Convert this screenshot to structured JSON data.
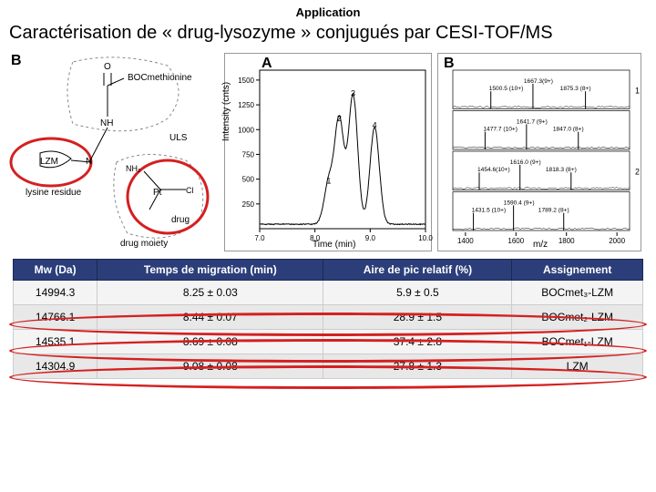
{
  "header": {
    "app_label": "Application",
    "title": "Caractérisation de « drug-lysozyme » conjugués par CESI-TOF/MS"
  },
  "panelA": {
    "letter": "B",
    "labels": {
      "boc": "BOCmethionine",
      "nh": "NH",
      "uls": "ULS",
      "lzm": "LZM",
      "n": "N",
      "lysine": "lysine residue",
      "nh2": "NH₂",
      "pt": "Pt",
      "cl": "Cl",
      "drug": "drug",
      "moiety": "drug moiety"
    },
    "ellipse_color": "#d42020",
    "dash_color": "#888888",
    "line_color": "#222222"
  },
  "panelB": {
    "letter": "A",
    "ylabel": "Intensity (cnts)",
    "xlabel": "Time (min)",
    "xticks": [
      "7.0",
      "8.0",
      "9.0",
      "10.0"
    ],
    "yticks": [
      "250",
      "500",
      "750",
      "1000",
      "1250",
      "1500"
    ],
    "xlim": [
      7.0,
      10.0
    ],
    "ylim": [
      0,
      1600
    ],
    "peaks_x": [
      8.25,
      8.44,
      8.69,
      9.08
    ],
    "peaks_y": [
      420,
      1050,
      1300,
      980
    ],
    "peak_labels": [
      "1",
      "2",
      "3",
      "4"
    ],
    "line_color": "#000000",
    "grid_color": "#cccccc",
    "background_color": "#ffffff"
  },
  "panelC": {
    "letter": "B",
    "xlabel": "m/z",
    "xticks": [
      "1400",
      "1600",
      "1800",
      "2000"
    ],
    "xlim": [
      1350,
      2050
    ],
    "rows": [
      {
        "label_idx": "1",
        "peaks": [
          {
            "mz": 1500.5,
            "ann": "1500.5 (10+)"
          },
          {
            "mz": 1667.3,
            "ann": "1667.3(9+)"
          },
          {
            "mz": 1875.3,
            "ann": "1875.3 (8+)"
          }
        ]
      },
      {
        "label_idx": "",
        "peaks": [
          {
            "mz": 1477.7,
            "ann": "1477.7 (10+)"
          },
          {
            "mz": 1641.7,
            "ann": "1641.7 (9+)"
          },
          {
            "mz": 1847.0,
            "ann": "1847.0 (8+)"
          }
        ]
      },
      {
        "label_idx": "2",
        "peaks": [
          {
            "mz": 1454.6,
            "ann": "1454.6(10+)"
          },
          {
            "mz": 1616.0,
            "ann": "1616.0 (9+)"
          },
          {
            "mz": 1818.3,
            "ann": "1818.3 (8+)"
          }
        ]
      },
      {
        "label_idx": "",
        "peaks": [
          {
            "mz": 1431.5,
            "ann": "1431.5 (10+)"
          },
          {
            "mz": 1590.4,
            "ann": "1590.4 (9+)"
          },
          {
            "mz": 1789.2,
            "ann": "1789.2 (8+)"
          }
        ]
      }
    ],
    "line_color": "#000000"
  },
  "table": {
    "columns": [
      "Mw (Da)",
      "Temps de migration (min)",
      "Aire de pic relatif (%)",
      "Assignement"
    ],
    "rows": [
      [
        "14994.3",
        "8.25 ± 0.03",
        "5.9 ± 0.5",
        "BOCmet₃-LZM"
      ],
      [
        "14766.1",
        "8.44 ± 0.07",
        "28.9 ± 1.5",
        "BOCmet₂-LZM"
      ],
      [
        "14535.1",
        "8.69 ± 0.08",
        "37.4 ± 2.8",
        "BOCmet₁-LZM"
      ],
      [
        "14304.9",
        "9.08 ± 0.08",
        "27.8 ± 1.3",
        "LZM"
      ]
    ],
    "header_bg": "#2c3e7a",
    "header_fg": "#ffffff",
    "row_bg_odd": "#f4f4f4",
    "row_bg_even": "#e8e8e8",
    "oval_color": "#d42020"
  }
}
